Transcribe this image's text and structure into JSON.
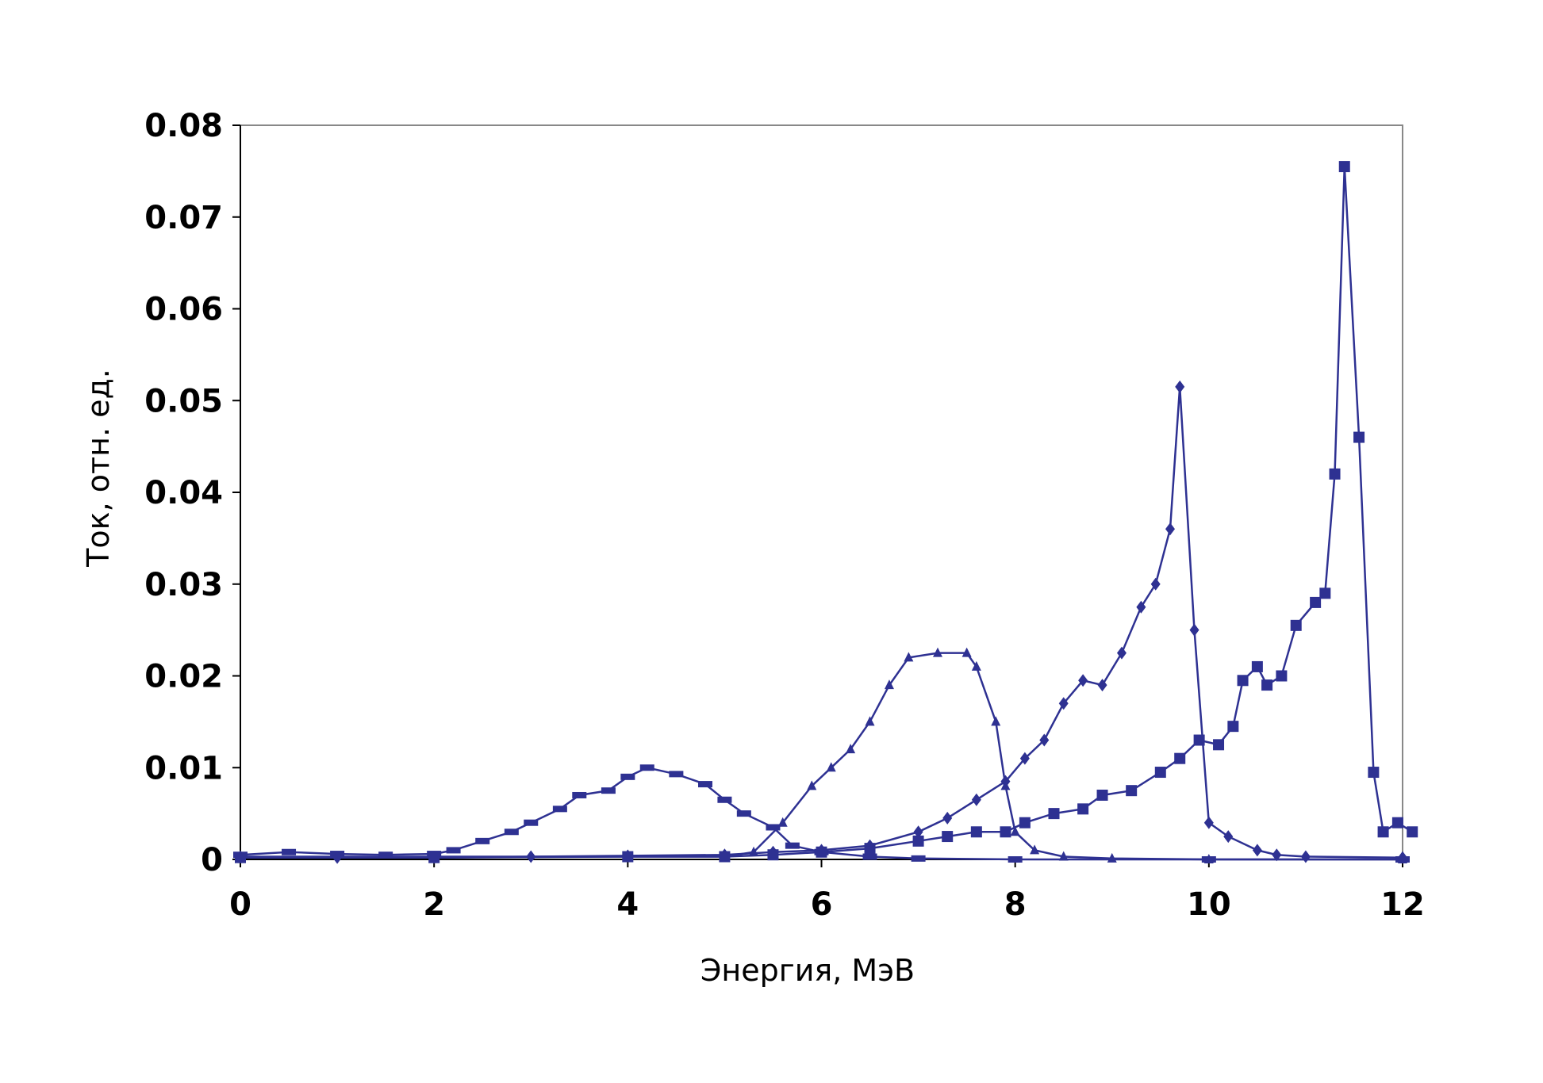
{
  "chart_data": {
    "type": "line",
    "title": "",
    "xlabel": "Энергия, МэВ",
    "ylabel": "Ток, отн. ед.",
    "xlim": [
      0,
      12
    ],
    "ylim": [
      0,
      0.08
    ],
    "x_ticks": [
      "0",
      "2",
      "4",
      "6",
      "8",
      "10",
      "12"
    ],
    "y_ticks": [
      "0",
      "0.01",
      "0.02",
      "0.03",
      "0.04",
      "0.05",
      "0.06",
      "0.07",
      "0.08"
    ],
    "grid": false,
    "legend": "none",
    "color": "#2e3192",
    "series": [
      {
        "marker": "dash",
        "points": [
          [
            0,
            0.0005
          ],
          [
            0.5,
            0.0008
          ],
          [
            1,
            0.0006
          ],
          [
            1.5,
            0.0005
          ],
          [
            2,
            0.0006
          ],
          [
            2.2,
            0.001
          ],
          [
            2.5,
            0.002
          ],
          [
            2.8,
            0.003
          ],
          [
            3.0,
            0.004
          ],
          [
            3.3,
            0.0055
          ],
          [
            3.5,
            0.007
          ],
          [
            3.8,
            0.0075
          ],
          [
            4.0,
            0.009
          ],
          [
            4.2,
            0.01
          ],
          [
            4.5,
            0.0093
          ],
          [
            4.8,
            0.0082
          ],
          [
            5.0,
            0.0065
          ],
          [
            5.2,
            0.005
          ],
          [
            5.5,
            0.0035
          ],
          [
            5.7,
            0.0015
          ],
          [
            6.0,
            0.0008
          ],
          [
            6.5,
            0.0003
          ],
          [
            7,
            0.0001
          ],
          [
            8,
            0
          ],
          [
            10,
            0
          ],
          [
            12,
            0
          ]
        ]
      },
      {
        "marker": "triangle",
        "points": [
          [
            0,
            0.0003
          ],
          [
            2,
            0.0003
          ],
          [
            4,
            0.0003
          ],
          [
            5.0,
            0.0003
          ],
          [
            5.3,
            0.0008
          ],
          [
            5.6,
            0.004
          ],
          [
            5.9,
            0.008
          ],
          [
            6.1,
            0.01
          ],
          [
            6.3,
            0.012
          ],
          [
            6.5,
            0.015
          ],
          [
            6.7,
            0.019
          ],
          [
            6.9,
            0.022
          ],
          [
            7.2,
            0.0225
          ],
          [
            7.5,
            0.0225
          ],
          [
            7.6,
            0.021
          ],
          [
            7.8,
            0.015
          ],
          [
            7.9,
            0.008
          ],
          [
            8.0,
            0.003
          ],
          [
            8.2,
            0.001
          ],
          [
            8.5,
            0.0003
          ],
          [
            9,
            0.0001
          ],
          [
            10,
            0
          ],
          [
            12,
            0
          ]
        ]
      },
      {
        "marker": "diamond",
        "points": [
          [
            0,
            0.0003
          ],
          [
            1,
            0.0002
          ],
          [
            2,
            0.0002
          ],
          [
            3,
            0.0003
          ],
          [
            4,
            0.0004
          ],
          [
            5,
            0.0005
          ],
          [
            5.5,
            0.0008
          ],
          [
            6,
            0.001
          ],
          [
            6.5,
            0.0015
          ],
          [
            7,
            0.003
          ],
          [
            7.3,
            0.0045
          ],
          [
            7.6,
            0.0065
          ],
          [
            7.9,
            0.0085
          ],
          [
            8.1,
            0.011
          ],
          [
            8.3,
            0.013
          ],
          [
            8.5,
            0.017
          ],
          [
            8.7,
            0.0195
          ],
          [
            8.9,
            0.019
          ],
          [
            9.1,
            0.0225
          ],
          [
            9.3,
            0.0275
          ],
          [
            9.45,
            0.03
          ],
          [
            9.6,
            0.036
          ],
          [
            9.7,
            0.0515
          ],
          [
            9.85,
            0.025
          ],
          [
            10.0,
            0.004
          ],
          [
            10.2,
            0.0025
          ],
          [
            10.5,
            0.001
          ],
          [
            10.7,
            0.0005
          ],
          [
            11,
            0.0003
          ],
          [
            12,
            0.0002
          ]
        ]
      },
      {
        "marker": "square",
        "points": [
          [
            0,
            0.0002
          ],
          [
            2,
            0.0002
          ],
          [
            4,
            0.0003
          ],
          [
            5,
            0.0003
          ],
          [
            5.5,
            0.0005
          ],
          [
            6,
            0.0008
          ],
          [
            6.5,
            0.0012
          ],
          [
            7,
            0.002
          ],
          [
            7.3,
            0.0025
          ],
          [
            7.6,
            0.003
          ],
          [
            7.9,
            0.003
          ],
          [
            8.1,
            0.004
          ],
          [
            8.4,
            0.005
          ],
          [
            8.7,
            0.0055
          ],
          [
            8.9,
            0.007
          ],
          [
            9.2,
            0.0075
          ],
          [
            9.5,
            0.0095
          ],
          [
            9.7,
            0.011
          ],
          [
            9.9,
            0.013
          ],
          [
            10.1,
            0.0125
          ],
          [
            10.25,
            0.0145
          ],
          [
            10.35,
            0.0195
          ],
          [
            10.5,
            0.021
          ],
          [
            10.6,
            0.019
          ],
          [
            10.75,
            0.02
          ],
          [
            10.9,
            0.0255
          ],
          [
            11.1,
            0.028
          ],
          [
            11.2,
            0.029
          ],
          [
            11.3,
            0.042
          ],
          [
            11.4,
            0.0755
          ],
          [
            11.55,
            0.046
          ],
          [
            11.7,
            0.0095
          ],
          [
            11.8,
            0.003
          ],
          [
            11.95,
            0.004
          ],
          [
            12.1,
            0.003
          ]
        ]
      }
    ]
  }
}
